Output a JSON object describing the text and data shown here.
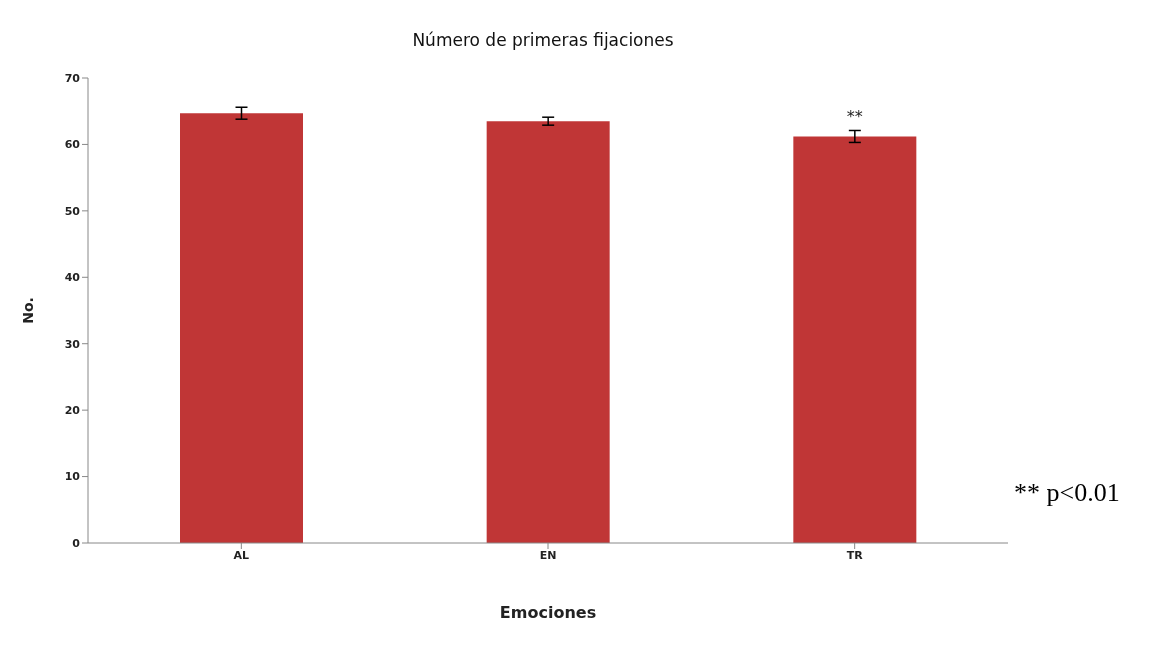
{
  "chart_data": {
    "type": "bar",
    "title": "Número de primeras fijaciones",
    "xlabel": "Emociones",
    "ylabel": "No.",
    "categories": [
      "AL",
      "EN",
      "TR"
    ],
    "values": [
      64.7,
      63.5,
      61.2
    ],
    "errors": [
      0.9,
      0.6,
      0.9
    ],
    "color": "#c03636",
    "ylim": [
      0,
      70
    ],
    "yticks": [
      0,
      10,
      20,
      30,
      40,
      50,
      60,
      70
    ],
    "grid": false,
    "legend": false,
    "annotations": [
      {
        "text": "**",
        "x": "TR",
        "y": 62.6
      },
      "** p<0.01"
    ]
  }
}
